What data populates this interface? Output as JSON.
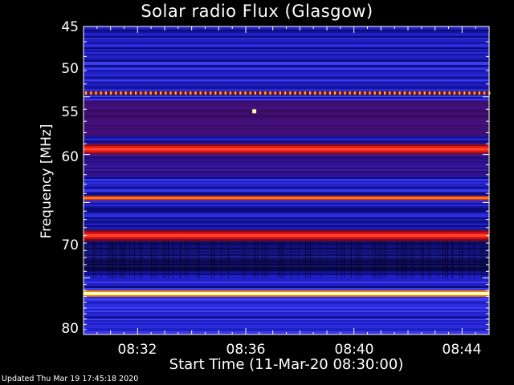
{
  "chart_data": {
    "type": "heatmap",
    "title": "Solar radio Flux (Glasgow)",
    "xlabel": "Start Time (11-Mar-20 08:30:00)",
    "ylabel": "Frequency [MHz]",
    "x_ticks": [
      "08:32",
      "08:36",
      "08:40",
      "08:44"
    ],
    "x_tick_minutes": [
      2,
      6,
      10,
      14
    ],
    "xlim_minutes": [
      0,
      15
    ],
    "y_ticks": [
      45,
      50,
      55,
      60,
      70,
      80
    ],
    "ylim": [
      45,
      80
    ],
    "y_scale": "reciprocal",
    "colormap": [
      "#000000",
      "#0a0a8c",
      "#3838e6",
      "#8c0a0a",
      "#e61414",
      "#ff8c00",
      "#ffff96"
    ],
    "bands": [
      {
        "mhz": 49.7,
        "level": "dotted-orange"
      },
      {
        "mhz": 54.5,
        "level": "red"
      },
      {
        "mhz": 59.5,
        "level": "orange"
      },
      {
        "mhz": 64.0,
        "level": "red"
      },
      {
        "mhz": 72.5,
        "level": "yellow-white"
      }
    ],
    "spot": {
      "minute": 6.3,
      "mhz": 51.2
    }
  },
  "footer": "Updated Thu Mar 19 17:45:18 2020"
}
